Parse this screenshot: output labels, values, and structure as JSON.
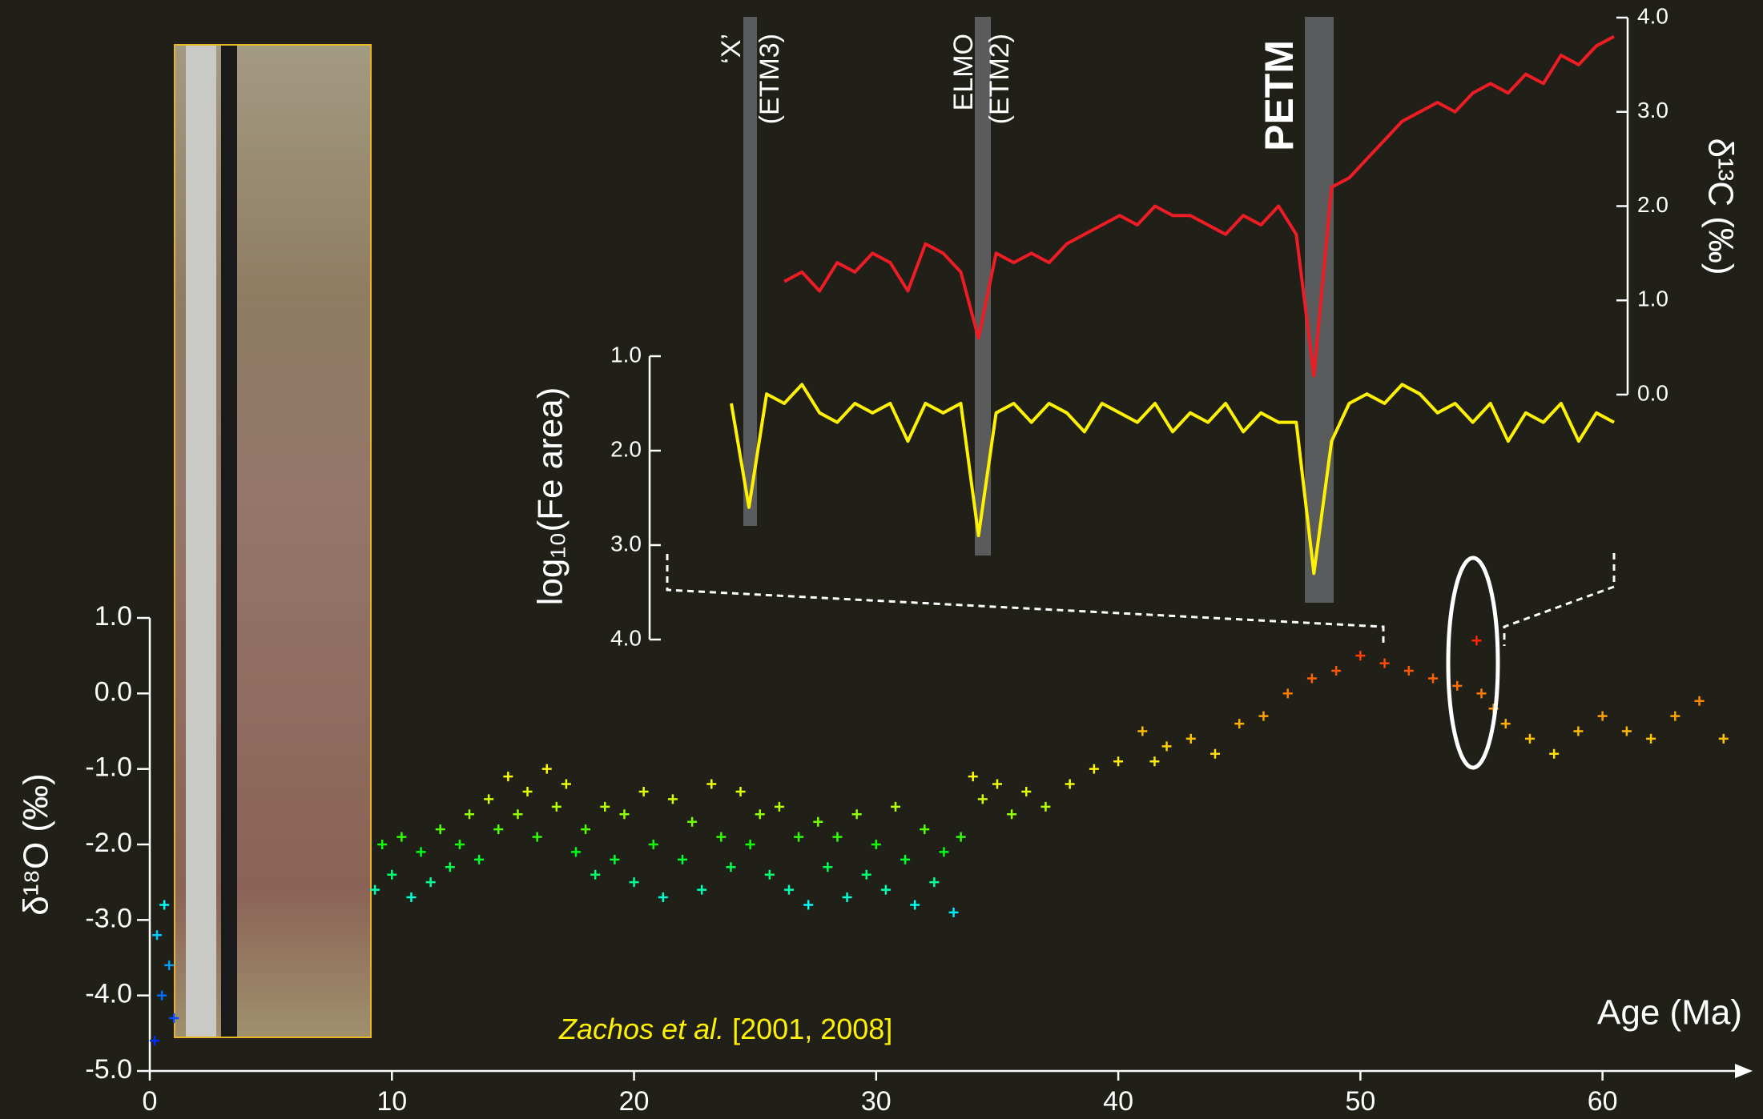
{
  "chart_data": [
    {
      "type": "scatter",
      "marker": "+",
      "colormap": "jet",
      "xlabel": "Age (Ma)",
      "ylabel": "δ¹⁸O (‰)",
      "citation_authors": "Zachos et al.",
      "citation_years": "[2001, 2008]",
      "xlim": [
        0,
        66
      ],
      "xticks": [
        0,
        10,
        20,
        30,
        40,
        50,
        60
      ],
      "ylim": [
        -5,
        1
      ],
      "yticks": [
        {
          "value": -5,
          "label": "-5.0"
        },
        {
          "value": -4,
          "label": "-4.0"
        },
        {
          "value": -3,
          "label": "-3.0"
        },
        {
          "value": -2,
          "label": "-2.0"
        },
        {
          "value": -1,
          "label": "-1.0"
        },
        {
          "value": 0,
          "label": "0.0"
        },
        {
          "value": 1,
          "label": "1.0"
        }
      ],
      "x": [
        0.2,
        0.3,
        0.5,
        0.6,
        0.8,
        1.0,
        9.3,
        9.6,
        10,
        10.4,
        10.8,
        11.2,
        11.6,
        12,
        12.4,
        12.8,
        13.2,
        13.6,
        14,
        14.4,
        14.8,
        15.2,
        15.6,
        16,
        16.4,
        16.8,
        17.2,
        17.6,
        18,
        18.4,
        18.8,
        19.2,
        19.6,
        20,
        20.4,
        20.8,
        21.2,
        21.6,
        22,
        22.4,
        22.8,
        23.2,
        23.6,
        24,
        24.4,
        24.8,
        25.2,
        25.6,
        26,
        26.4,
        26.8,
        27.2,
        27.6,
        28,
        28.4,
        28.8,
        29.2,
        29.6,
        30,
        30.4,
        30.8,
        31.2,
        31.6,
        32,
        32.4,
        32.8,
        33.2,
        33.5,
        34,
        34.4,
        35,
        35.6,
        36.2,
        37,
        38,
        39,
        40,
        41,
        41.5,
        42,
        43,
        44,
        45,
        46,
        47,
        48,
        49,
        50,
        51,
        52,
        53,
        54,
        54.8,
        55,
        55.5,
        56,
        57,
        58,
        59,
        60,
        61,
        62,
        63,
        64,
        65
      ],
      "values": [
        -4.6,
        -3.2,
        -4.0,
        -2.8,
        -3.6,
        -4.3,
        -2.6,
        -2.0,
        -2.4,
        -1.9,
        -2.7,
        -2.1,
        -2.5,
        -1.8,
        -2.3,
        -2.0,
        -1.6,
        -2.2,
        -1.4,
        -1.8,
        -1.1,
        -1.6,
        -1.3,
        -1.9,
        -1.0,
        -1.5,
        -1.2,
        -2.1,
        -1.8,
        -2.4,
        -1.5,
        -2.2,
        -1.6,
        -2.5,
        -1.3,
        -2.0,
        -2.7,
        -1.4,
        -2.2,
        -1.7,
        -2.6,
        -1.2,
        -1.9,
        -2.3,
        -1.3,
        -2.0,
        -1.6,
        -2.4,
        -1.5,
        -2.6,
        -1.9,
        -2.8,
        -1.7,
        -2.3,
        -1.9,
        -2.7,
        -1.6,
        -2.4,
        -2.0,
        -2.6,
        -1.5,
        -2.2,
        -2.8,
        -1.8,
        -2.5,
        -2.1,
        -2.9,
        -1.9,
        -1.1,
        -1.4,
        -1.2,
        -1.6,
        -1.3,
        -1.5,
        -1.2,
        -1.0,
        -0.9,
        -0.5,
        -0.9,
        -0.7,
        -0.6,
        -0.8,
        -0.4,
        -0.3,
        0.0,
        0.2,
        0.3,
        0.5,
        0.4,
        0.3,
        0.2,
        0.1,
        0.7,
        0.0,
        -0.2,
        -0.4,
        -0.6,
        -0.8,
        -0.5,
        -0.3,
        -0.5,
        -0.6,
        -0.3,
        -0.1,
        -0.6
      ]
    },
    {
      "type": "line",
      "ylabel": "log₁₀(Fe area)",
      "y2label": "δ¹³C (‰)",
      "annotations": [
        "‘X’",
        "(ETM3)",
        "ELMO",
        "(ETM2)",
        "PETM"
      ],
      "ylim": [
        1,
        4
      ],
      "y_inverted": true,
      "yticks": [
        {
          "value": 1,
          "label": "1.0"
        },
        {
          "value": 2,
          "label": "2.0"
        },
        {
          "value": 3,
          "label": "3.0"
        },
        {
          "value": 4,
          "label": "4.0"
        }
      ],
      "y2lim": [
        0,
        4
      ],
      "y2ticks": [
        {
          "value": 0,
          "label": "0.0"
        },
        {
          "value": 1,
          "label": "1.0"
        },
        {
          "value": 2,
          "label": "2.0"
        },
        {
          "value": 3,
          "label": "3.0"
        },
        {
          "value": 4,
          "label": "4.0"
        }
      ],
      "series": [
        {
          "color": "#ee1c25",
          "axis": "y2",
          "values": [
            null,
            null,
            null,
            1.2,
            1.3,
            1.1,
            1.4,
            1.3,
            1.5,
            1.4,
            1.1,
            1.6,
            1.5,
            1.3,
            0.6,
            1.5,
            1.4,
            1.5,
            1.4,
            1.6,
            1.7,
            1.8,
            1.9,
            1.8,
            2.0,
            1.9,
            1.9,
            1.8,
            1.7,
            1.9,
            1.8,
            2.0,
            1.7,
            0.2,
            2.2,
            2.3,
            2.5,
            2.7,
            2.9,
            3.0,
            3.1,
            3.0,
            3.2,
            3.3,
            3.2,
            3.4,
            3.3,
            3.6,
            3.5,
            3.7,
            3.8
          ]
        },
        {
          "color": "#fff200",
          "axis": "y",
          "values": [
            1.5,
            2.6,
            1.4,
            1.5,
            1.3,
            1.6,
            1.7,
            1.5,
            1.6,
            1.5,
            1.9,
            1.5,
            1.6,
            1.5,
            2.9,
            1.6,
            1.5,
            1.7,
            1.5,
            1.6,
            1.8,
            1.5,
            1.6,
            1.7,
            1.5,
            1.8,
            1.6,
            1.7,
            1.5,
            1.8,
            1.6,
            1.7,
            1.7,
            3.3,
            1.9,
            1.5,
            1.4,
            1.5,
            1.3,
            1.4,
            1.6,
            1.5,
            1.7,
            1.5,
            1.9,
            1.6,
            1.7,
            1.5,
            1.9,
            1.6,
            1.7
          ]
        }
      ]
    }
  ]
}
